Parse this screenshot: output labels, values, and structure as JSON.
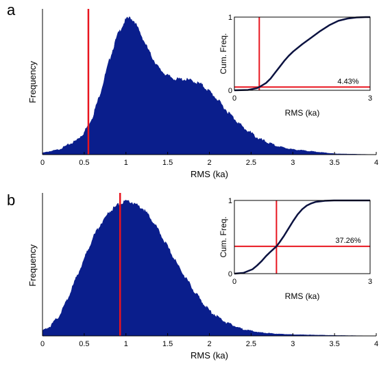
{
  "colors": {
    "histogram_fill": "#0a1e8c",
    "cdf_line": "#0b1240",
    "threshold_line": "#e8141e",
    "axis": "#000000"
  },
  "chart_data": [
    {
      "type": "area",
      "panel_label": "a",
      "xlabel": "RMS (ka)",
      "ylabel": "Frequency",
      "xlim": [
        0,
        4
      ],
      "xticks": [
        0,
        0.5,
        1,
        1.5,
        2,
        2.5,
        3,
        3.5,
        4
      ],
      "xtick_labels": [
        "0",
        "0.5",
        "1",
        "1.5",
        "2",
        "2.5",
        "3",
        "3.5",
        "4"
      ],
      "yticks_shown": false,
      "threshold_x": 0.55,
      "histogram": {
        "x": [
          0,
          0.2,
          0.4,
          0.5,
          0.6,
          0.7,
          0.8,
          0.9,
          1.0,
          1.05,
          1.1,
          1.2,
          1.3,
          1.4,
          1.5,
          1.6,
          1.7,
          1.8,
          1.9,
          2.0,
          2.1,
          2.2,
          2.4,
          2.6,
          2.8,
          3.0,
          3.2,
          3.5,
          4.0
        ],
        "y": [
          0.01,
          0.03,
          0.08,
          0.13,
          0.22,
          0.37,
          0.55,
          0.7,
          0.79,
          0.8,
          0.78,
          0.68,
          0.58,
          0.5,
          0.46,
          0.44,
          0.44,
          0.43,
          0.41,
          0.37,
          0.32,
          0.26,
          0.16,
          0.09,
          0.05,
          0.03,
          0.02,
          0.005,
          0.0
        ]
      },
      "inset": {
        "type": "line",
        "xlabel": "RMS (ka)",
        "ylabel": "Cum. Freq.",
        "xlim": [
          0,
          3
        ],
        "ylim": [
          0,
          1
        ],
        "xtick_labels": [
          "0",
          "3"
        ],
        "ytick_labels": [
          "0",
          "1"
        ],
        "threshold_x": 0.55,
        "threshold_y": 0.0443,
        "annotation": "4.43%",
        "cdf": {
          "x": [
            0,
            0.3,
            0.5,
            0.55,
            0.7,
            0.8,
            0.9,
            1.0,
            1.1,
            1.2,
            1.3,
            1.5,
            1.7,
            1.9,
            2.1,
            2.3,
            2.5,
            2.7,
            2.9,
            3.0
          ],
          "y": [
            0,
            0.005,
            0.03,
            0.0443,
            0.1,
            0.16,
            0.24,
            0.32,
            0.4,
            0.47,
            0.53,
            0.63,
            0.72,
            0.81,
            0.89,
            0.95,
            0.98,
            0.995,
            1.0,
            1.0
          ]
        }
      }
    },
    {
      "type": "area",
      "panel_label": "b",
      "xlabel": "RMS (ka)",
      "ylabel": "Frequency",
      "xlim": [
        0,
        4
      ],
      "xticks": [
        0,
        0.5,
        1,
        1.5,
        2,
        2.5,
        3,
        3.5,
        4
      ],
      "xtick_labels": [
        "0",
        "0.5",
        "1",
        "1.5",
        "2",
        "2.5",
        "3",
        "3.5",
        "4"
      ],
      "yticks_shown": false,
      "threshold_x": 0.93,
      "histogram": {
        "x": [
          0,
          0.1,
          0.2,
          0.3,
          0.4,
          0.5,
          0.6,
          0.7,
          0.8,
          0.9,
          1.0,
          1.05,
          1.1,
          1.2,
          1.3,
          1.4,
          1.5,
          1.6,
          1.7,
          1.8,
          1.9,
          2.0,
          2.2,
          2.4,
          2.6,
          2.8,
          3.0,
          3.5,
          4.0
        ],
        "y": [
          0.03,
          0.06,
          0.12,
          0.22,
          0.34,
          0.46,
          0.58,
          0.67,
          0.74,
          0.78,
          0.8,
          0.8,
          0.79,
          0.76,
          0.7,
          0.62,
          0.53,
          0.44,
          0.36,
          0.28,
          0.21,
          0.15,
          0.08,
          0.04,
          0.02,
          0.012,
          0.008,
          0.003,
          0.0
        ]
      },
      "inset": {
        "type": "line",
        "xlabel": "RMS (ka)",
        "ylabel": "Cum. Freq.",
        "xlim": [
          0,
          3
        ],
        "ylim": [
          0,
          1
        ],
        "xtick_labels": [
          "0",
          "3"
        ],
        "ytick_labels": [
          "0",
          "1"
        ],
        "threshold_x": 0.93,
        "threshold_y": 0.3726,
        "annotation": "37.26%",
        "cdf": {
          "x": [
            0,
            0.2,
            0.4,
            0.5,
            0.6,
            0.7,
            0.8,
            0.93,
            1.0,
            1.1,
            1.2,
            1.3,
            1.4,
            1.5,
            1.6,
            1.7,
            1.8,
            2.0,
            2.2,
            2.5,
            3.0
          ],
          "y": [
            0,
            0.01,
            0.06,
            0.11,
            0.17,
            0.24,
            0.3,
            0.3726,
            0.43,
            0.52,
            0.62,
            0.72,
            0.81,
            0.88,
            0.93,
            0.96,
            0.98,
            0.995,
            1.0,
            1.0,
            1.0
          ]
        }
      }
    }
  ]
}
